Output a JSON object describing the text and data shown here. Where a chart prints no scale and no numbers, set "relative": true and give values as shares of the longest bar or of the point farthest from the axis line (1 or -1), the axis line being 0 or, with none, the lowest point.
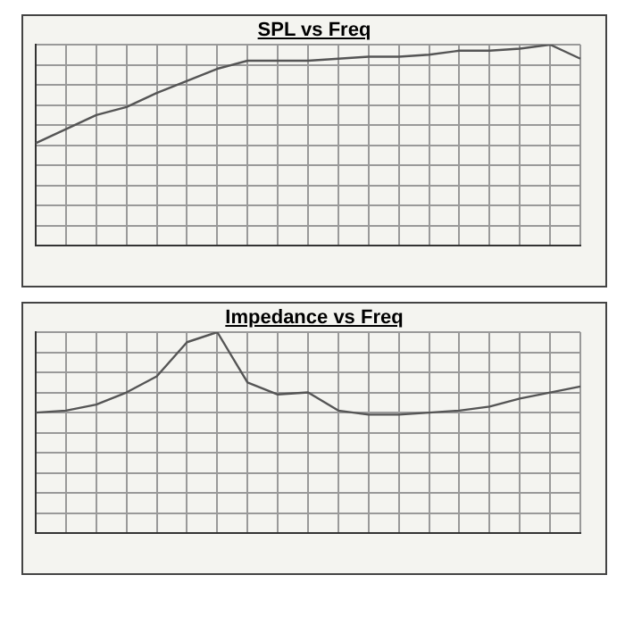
{
  "chart_data": [
    {
      "type": "line",
      "title": "SPL vs Freq",
      "relative": true,
      "grid": true,
      "marker": "none",
      "line_style": "solid",
      "legend": false,
      "categories": [
        null,
        null,
        null,
        null,
        null,
        null,
        null,
        null,
        null,
        null,
        null,
        null,
        null,
        null,
        null,
        null,
        null,
        null,
        null
      ],
      "series": [
        {
          "color": "#555555",
          "values": [
            0.51,
            0.58,
            0.65,
            0.69,
            0.76,
            0.82,
            0.88,
            0.92,
            0.92,
            0.92,
            0.93,
            0.94,
            0.94,
            0.95,
            0.97,
            0.97,
            0.98,
            1,
            0.93
          ]
        }
      ]
    },
    {
      "type": "line",
      "title": "Impedance vs Freq",
      "relative": true,
      "grid": true,
      "marker": "none",
      "line_style": "solid",
      "legend": false,
      "categories": [
        null,
        null,
        null,
        null,
        null,
        null,
        null,
        null,
        null,
        null,
        null,
        null,
        null,
        null,
        null,
        null,
        null,
        null,
        null
      ],
      "series": [
        {
          "color": "#555555",
          "values": [
            0.6,
            0.61,
            0.64,
            0.7,
            0.78,
            0.95,
            1,
            0.75,
            0.69,
            0.7,
            0.61,
            0.59,
            0.59,
            0.6,
            0.61,
            0.63,
            0.67,
            0.7,
            0.73
          ]
        }
      ]
    }
  ]
}
